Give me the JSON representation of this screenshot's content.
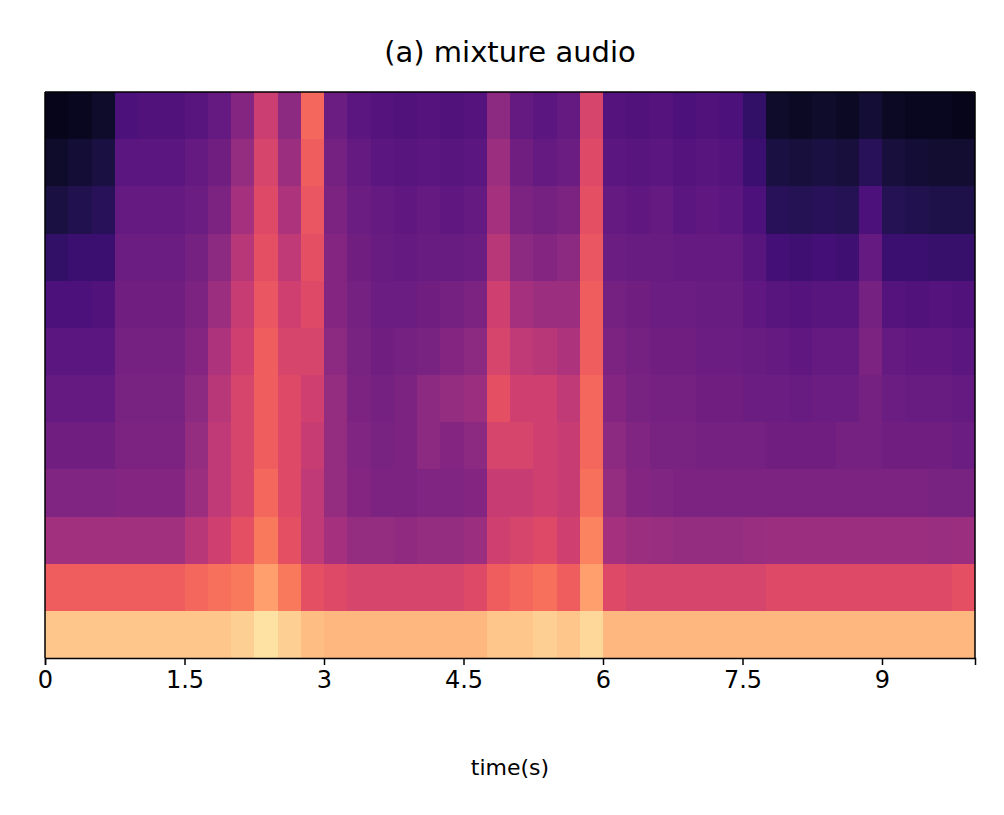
{
  "chart_data": {
    "type": "heatmap",
    "title": "(a) mixture audio",
    "x_label": "time(s)",
    "color": "magma",
    "tick_labels": "x",
    "xlim": [
      0,
      10
    ],
    "xticks": [
      0,
      1.5,
      3,
      4.5,
      6,
      7.5,
      9
    ],
    "zlim": [
      0,
      100
    ],
    "bins": [
      0,
      0.25,
      0.5,
      0.75,
      1,
      1.25,
      1.5,
      1.75,
      2,
      2.25,
      2.5,
      2.75,
      3,
      3.25,
      3.5,
      3.75,
      4,
      4.25,
      4.5,
      4.75,
      5,
      5.25,
      5.5,
      5.75,
      6,
      6.25,
      6.5,
      6.75,
      7,
      7.25,
      7.5,
      7.75,
      8,
      8.25,
      8.5,
      8.75,
      9,
      9.25,
      9.5,
      9.75,
      10
    ],
    "cells": [
      [
        5,
        6,
        8,
        24,
        25,
        25,
        27,
        30,
        38,
        55,
        40,
        68,
        32,
        28,
        26,
        25,
        26,
        25,
        26,
        40,
        30,
        28,
        30,
        58,
        26,
        25,
        26,
        24,
        25,
        24,
        18,
        8,
        7,
        8,
        7,
        10,
        7,
        6,
        6,
        5
      ],
      [
        8,
        10,
        12,
        28,
        28,
        28,
        30,
        33,
        42,
        58,
        44,
        66,
        34,
        30,
        28,
        27,
        28,
        27,
        28,
        44,
        33,
        30,
        32,
        60,
        28,
        27,
        28,
        26,
        27,
        26,
        20,
        12,
        11,
        12,
        11,
        16,
        11,
        10,
        9,
        9
      ],
      [
        12,
        14,
        16,
        30,
        30,
        30,
        32,
        36,
        46,
        60,
        48,
        64,
        36,
        32,
        30,
        29,
        30,
        29,
        30,
        46,
        36,
        34,
        36,
        62,
        30,
        29,
        30,
        28,
        29,
        28,
        24,
        16,
        15,
        16,
        15,
        24,
        15,
        14,
        13,
        13
      ],
      [
        18,
        20,
        20,
        32,
        32,
        32,
        34,
        40,
        50,
        62,
        52,
        62,
        38,
        33,
        31,
        30,
        31,
        31,
        32,
        50,
        40,
        38,
        40,
        64,
        32,
        31,
        31,
        30,
        30,
        30,
        27,
        22,
        21,
        22,
        21,
        30,
        20,
        20,
        19,
        19
      ],
      [
        24,
        24,
        25,
        33,
        33,
        33,
        36,
        44,
        54,
        64,
        56,
        60,
        38,
        34,
        32,
        32,
        33,
        34,
        36,
        56,
        46,
        44,
        44,
        66,
        34,
        33,
        32,
        32,
        31,
        31,
        29,
        27,
        26,
        27,
        27,
        34,
        26,
        25,
        26,
        25
      ],
      [
        28,
        28,
        28,
        34,
        34,
        34,
        38,
        48,
        56,
        66,
        58,
        58,
        40,
        35,
        33,
        34,
        35,
        38,
        40,
        58,
        52,
        50,
        48,
        66,
        36,
        34,
        33,
        33,
        32,
        32,
        31,
        30,
        29,
        30,
        30,
        36,
        30,
        29,
        29,
        28
      ],
      [
        30,
        30,
        30,
        35,
        35,
        35,
        40,
        50,
        58,
        66,
        60,
        56,
        42,
        36,
        34,
        36,
        40,
        42,
        44,
        62,
        56,
        56,
        52,
        68,
        38,
        35,
        34,
        34,
        33,
        33,
        32,
        32,
        31,
        32,
        32,
        34,
        32,
        31,
        31,
        30
      ],
      [
        33,
        33,
        33,
        36,
        36,
        36,
        42,
        52,
        58,
        66,
        60,
        54,
        42,
        37,
        35,
        36,
        40,
        38,
        40,
        58,
        58,
        56,
        54,
        68,
        40,
        37,
        35,
        35,
        34,
        34,
        34,
        33,
        33,
        33,
        34,
        34,
        33,
        33,
        33,
        32
      ],
      [
        37,
        37,
        37,
        38,
        38,
        38,
        44,
        52,
        58,
        68,
        60,
        52,
        42,
        38,
        36,
        36,
        37,
        37,
        38,
        54,
        54,
        56,
        54,
        70,
        42,
        38,
        37,
        36,
        36,
        36,
        36,
        36,
        36,
        36,
        36,
        36,
        36,
        36,
        35,
        35
      ],
      [
        45,
        45,
        45,
        45,
        45,
        45,
        50,
        56,
        62,
        72,
        62,
        52,
        46,
        42,
        42,
        41,
        42,
        42,
        44,
        56,
        58,
        60,
        56,
        74,
        46,
        44,
        43,
        42,
        42,
        42,
        43,
        44,
        44,
        44,
        44,
        44,
        44,
        44,
        43,
        44
      ],
      [
        66,
        66,
        66,
        66,
        66,
        66,
        68,
        70,
        72,
        80,
        72,
        62,
        60,
        58,
        58,
        58,
        58,
        58,
        60,
        66,
        68,
        70,
        66,
        80,
        60,
        58,
        58,
        58,
        58,
        58,
        58,
        60,
        60,
        60,
        60,
        60,
        60,
        60,
        60,
        62
      ],
      [
        88,
        88,
        88,
        88,
        88,
        88,
        88,
        88,
        90,
        94,
        90,
        86,
        85,
        85,
        85,
        85,
        85,
        85,
        85,
        88,
        88,
        90,
        88,
        92,
        85,
        85,
        85,
        85,
        85,
        85,
        85,
        85,
        85,
        85,
        85,
        85,
        85,
        85,
        85,
        85
      ]
    ]
  }
}
